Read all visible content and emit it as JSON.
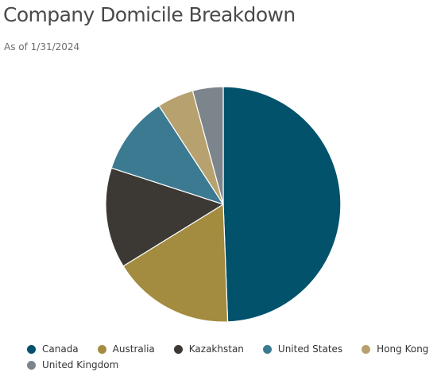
{
  "title": "Company Domicile Breakdown",
  "subtitle": "As of 1/31/2024",
  "chart_data": {
    "type": "pie",
    "title": "Company Domicile Breakdown",
    "subtitle": "As of 1/31/2024",
    "legend_position": "bottom",
    "start_angle_deg": 0,
    "direction": "clockwise",
    "slices": [
      {
        "label": "Canada",
        "value": 49.4,
        "color": "#02526c"
      },
      {
        "label": "Australia",
        "value": 16.8,
        "color": "#a38b3f"
      },
      {
        "label": "Kazakhstan",
        "value": 13.8,
        "color": "#3c3834"
      },
      {
        "label": "United States",
        "value": 10.8,
        "color": "#3b7a91"
      },
      {
        "label": "Hong Kong",
        "value": 5.0,
        "color": "#b7a16f"
      },
      {
        "label": "United Kingdom",
        "value": 4.2,
        "color": "#7c848c"
      }
    ]
  }
}
